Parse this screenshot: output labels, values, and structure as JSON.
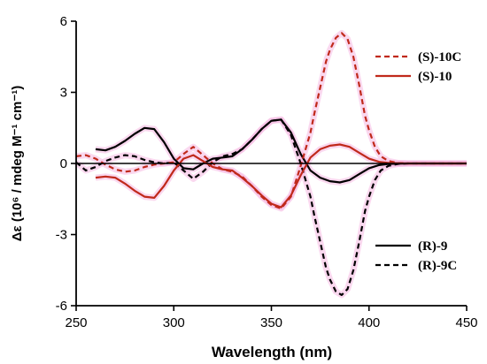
{
  "chart_data": {
    "type": "line",
    "title": "",
    "xlabel": "Wavelength (nm)",
    "ylabel": "Δε (10⁶ / mdeg M⁻¹ cm⁻¹)",
    "xlim": [
      250,
      450
    ],
    "ylim": [
      -6,
      6
    ],
    "xticks": [
      "250",
      "300",
      "350",
      "400",
      "450"
    ],
    "yticks": [
      "6",
      "3",
      "0",
      "-3",
      "-6"
    ],
    "zero_line": true,
    "grid": false,
    "legend_top": [
      "(S)-10C",
      "(S)-10"
    ],
    "legend_bottom": [
      "(R)-9",
      "(R)-9C"
    ],
    "series": [
      {
        "name": "(R)-9",
        "color": "#000000",
        "dash": "solid",
        "x": [
          260,
          265,
          270,
          275,
          280,
          285,
          290,
          295,
          300,
          305,
          310,
          315,
          320,
          325,
          330,
          335,
          340,
          345,
          350,
          355,
          360,
          365,
          370,
          375,
          380,
          385,
          390,
          395,
          400,
          405,
          410,
          420,
          430,
          440,
          450
        ],
        "y": [
          0.6,
          0.55,
          0.7,
          0.95,
          1.25,
          1.5,
          1.45,
          0.9,
          0.2,
          -0.2,
          -0.25,
          0.0,
          0.2,
          0.25,
          0.3,
          0.6,
          1.0,
          1.45,
          1.8,
          1.85,
          1.3,
          0.4,
          -0.3,
          -0.6,
          -0.75,
          -0.8,
          -0.7,
          -0.45,
          -0.2,
          -0.07,
          -0.02,
          0.0,
          0.0,
          0.0,
          0.0
        ]
      },
      {
        "name": "(R)-9C",
        "color": "#000000",
        "dash": "dashed",
        "x": [
          250,
          255,
          260,
          265,
          270,
          275,
          280,
          285,
          290,
          295,
          300,
          305,
          310,
          315,
          320,
          325,
          330,
          335,
          340,
          345,
          350,
          355,
          360,
          365,
          370,
          372,
          375,
          378,
          380,
          383,
          386,
          389,
          392,
          395,
          398,
          400,
          403,
          406,
          410,
          415,
          420,
          430,
          440,
          450
        ],
        "y": [
          0.05,
          -0.3,
          -0.15,
          0.1,
          0.25,
          0.35,
          0.3,
          0.15,
          0.05,
          0.0,
          0.05,
          -0.3,
          -0.65,
          -0.35,
          0.05,
          0.3,
          0.4,
          0.6,
          1.0,
          1.45,
          1.8,
          1.85,
          1.2,
          0.0,
          -1.4,
          -2.2,
          -3.3,
          -4.4,
          -4.9,
          -5.4,
          -5.55,
          -5.3,
          -4.5,
          -3.3,
          -2.0,
          -1.4,
          -0.7,
          -0.3,
          -0.1,
          -0.02,
          0.0,
          0.0,
          0.0,
          0.0
        ]
      },
      {
        "name": "(S)-10",
        "color": "#c0291b",
        "dash": "solid",
        "x": [
          260,
          265,
          270,
          275,
          280,
          285,
          290,
          295,
          300,
          305,
          310,
          315,
          320,
          325,
          330,
          335,
          340,
          345,
          350,
          355,
          360,
          365,
          370,
          375,
          380,
          385,
          390,
          395,
          400,
          405,
          410,
          420,
          430,
          440,
          450
        ],
        "y": [
          -0.6,
          -0.55,
          -0.6,
          -0.85,
          -1.15,
          -1.4,
          -1.45,
          -0.95,
          -0.3,
          0.2,
          0.35,
          0.1,
          -0.15,
          -0.25,
          -0.3,
          -0.6,
          -0.95,
          -1.35,
          -1.7,
          -1.85,
          -1.35,
          -0.5,
          0.25,
          0.6,
          0.75,
          0.8,
          0.7,
          0.45,
          0.2,
          0.07,
          0.02,
          0.0,
          0.0,
          0.0,
          0.0
        ]
      },
      {
        "name": "(S)-10C",
        "color": "#c0291b",
        "dash": "dashed",
        "x": [
          250,
          255,
          260,
          265,
          270,
          275,
          280,
          285,
          290,
          295,
          300,
          305,
          310,
          315,
          320,
          325,
          330,
          335,
          340,
          345,
          350,
          355,
          360,
          365,
          370,
          372,
          375,
          378,
          380,
          383,
          386,
          389,
          392,
          395,
          398,
          400,
          403,
          406,
          410,
          415,
          420,
          430,
          440,
          450
        ],
        "y": [
          0.3,
          0.35,
          0.2,
          -0.05,
          -0.25,
          -0.35,
          -0.3,
          -0.15,
          -0.05,
          0.0,
          0.05,
          0.4,
          0.7,
          0.35,
          0.0,
          -0.25,
          -0.35,
          -0.55,
          -0.95,
          -1.4,
          -1.75,
          -1.9,
          -1.4,
          -0.1,
          1.3,
          2.1,
          3.2,
          4.3,
          4.8,
          5.3,
          5.5,
          5.25,
          4.5,
          3.3,
          2.0,
          1.4,
          0.7,
          0.3,
          0.1,
          0.02,
          0.0,
          0.0,
          0.0,
          0.0
        ]
      }
    ]
  }
}
